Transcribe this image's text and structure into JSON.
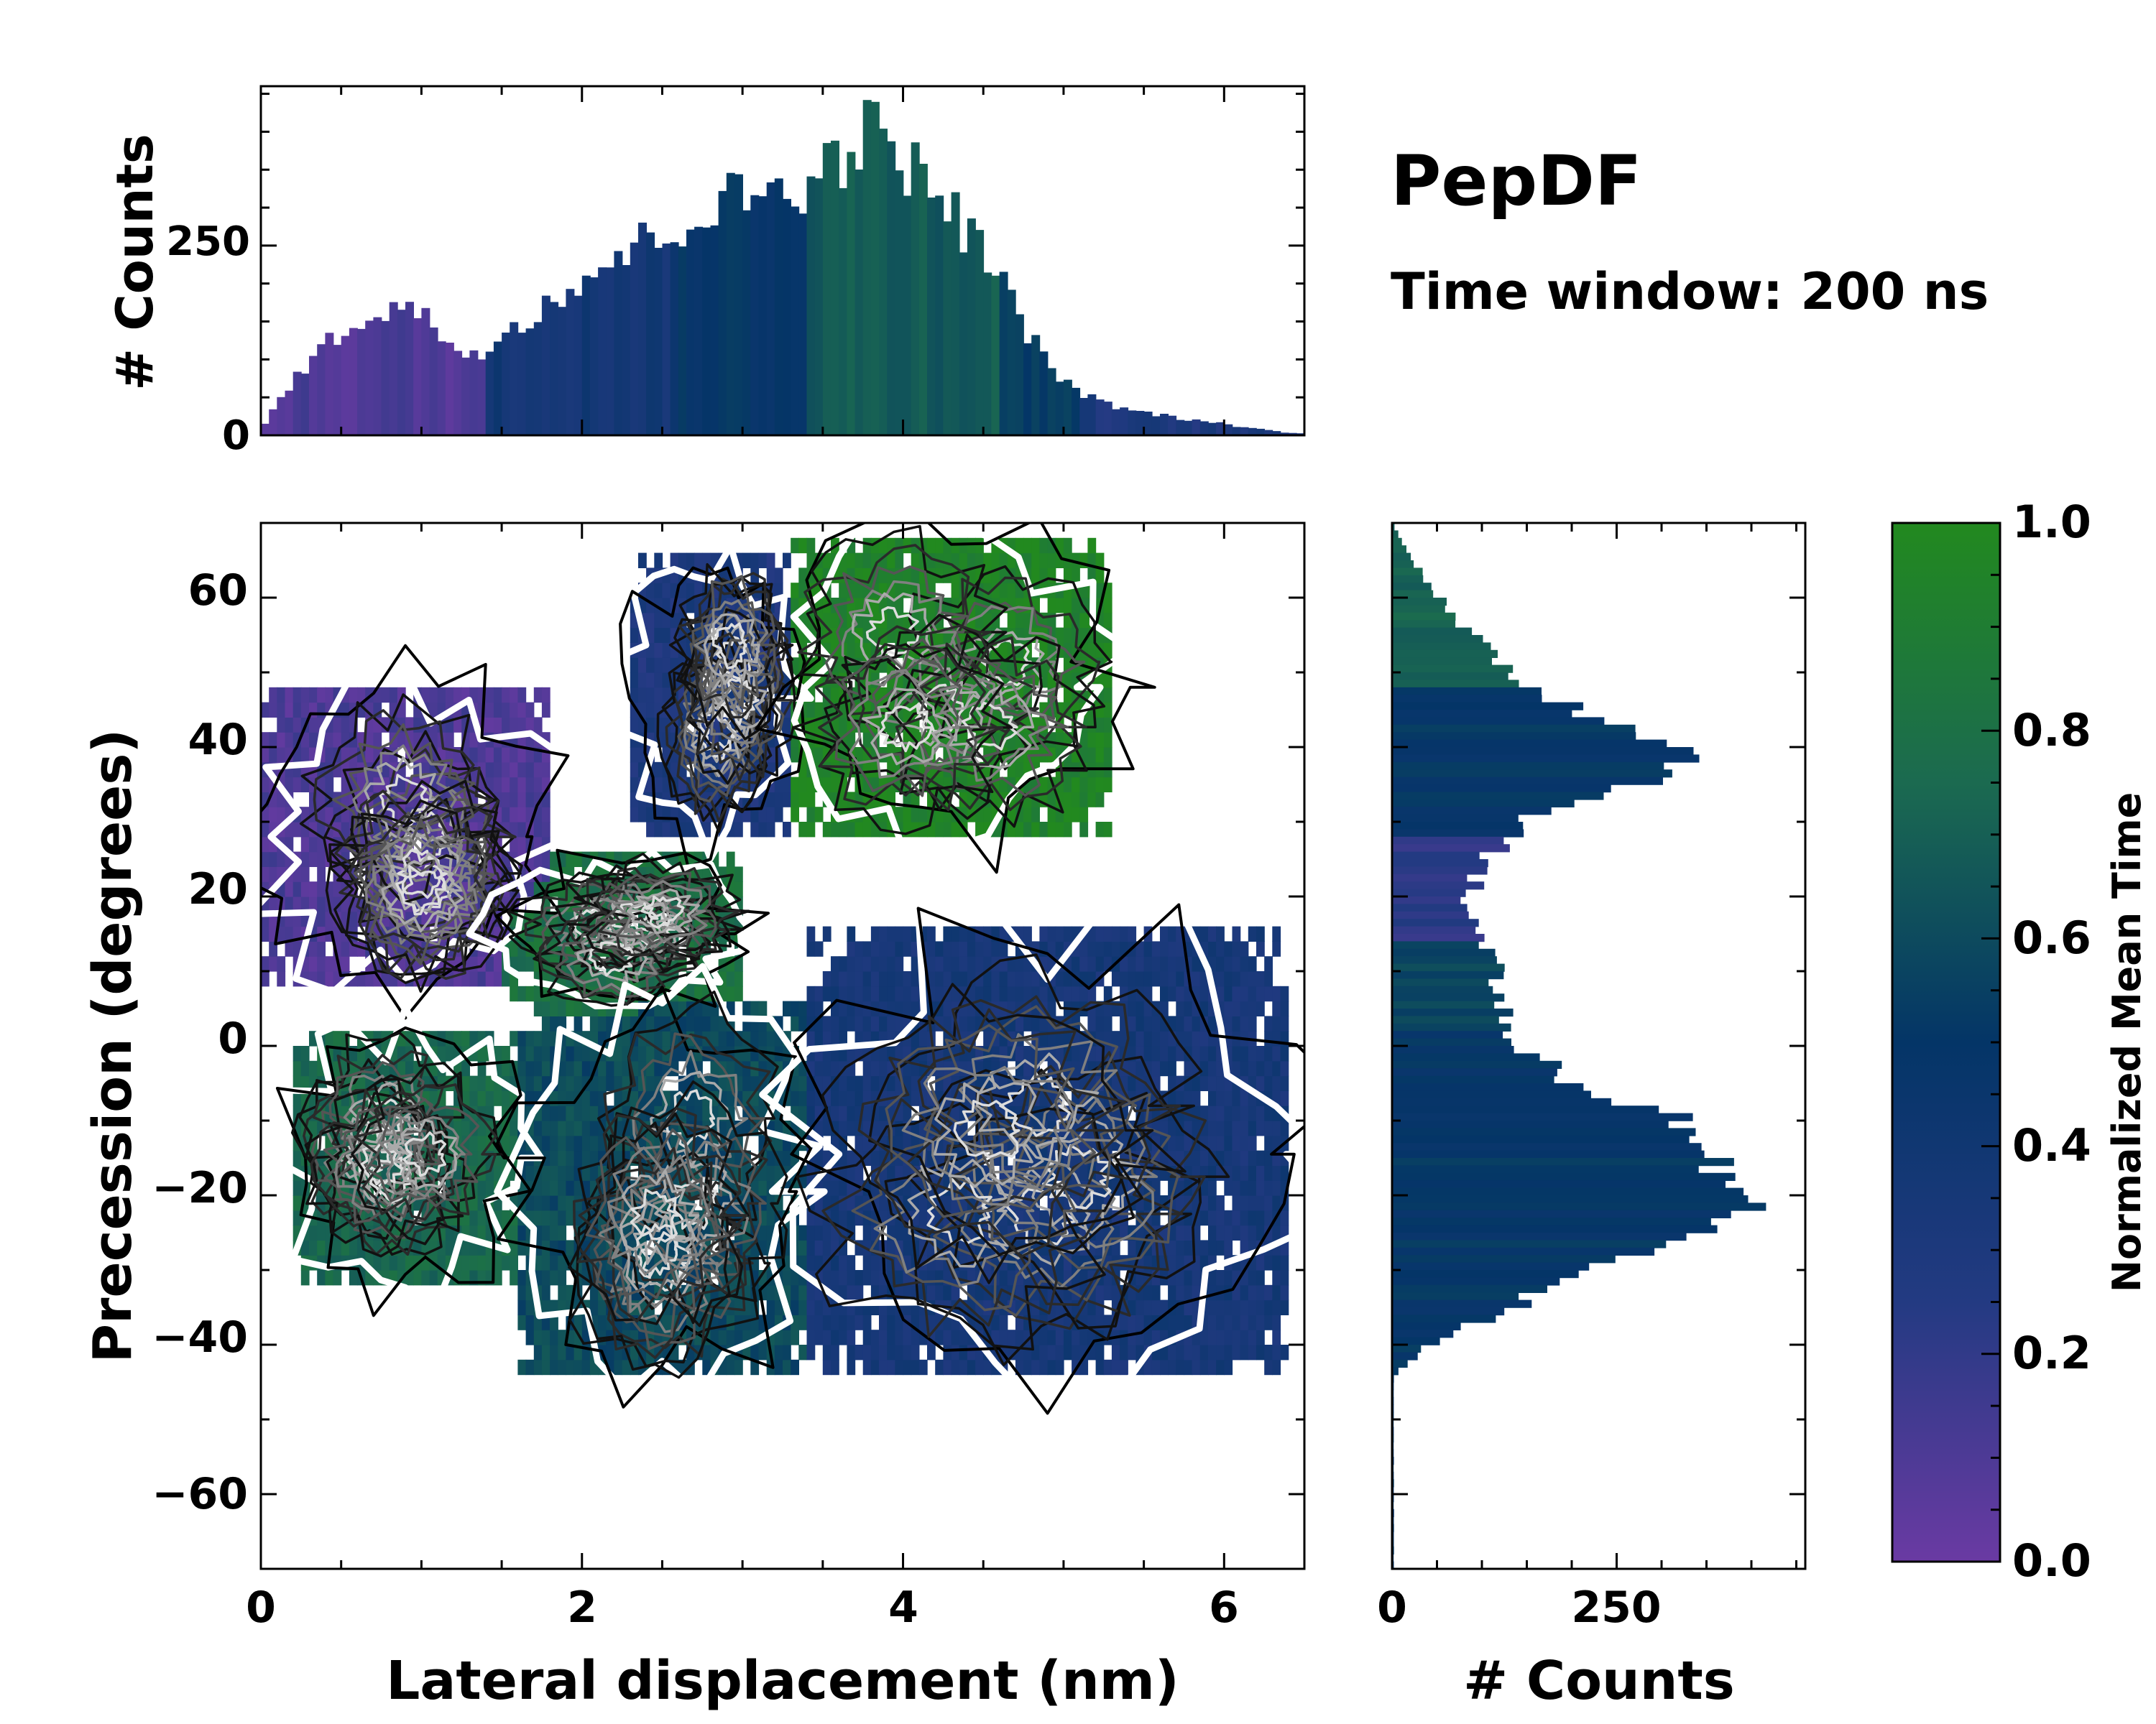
{
  "chart_data": {
    "type": "heatmap",
    "title": "PepDF",
    "subtitle": "Time window: 200 ns",
    "xlabel": "Lateral displacement (nm)",
    "ylabel": "Precession (degrees)",
    "xlim": [
      0,
      6.5
    ],
    "ylim": [
      -70,
      70
    ],
    "xticks": [
      "0",
      "2",
      "4",
      "6"
    ],
    "xtick_values": [
      0,
      2,
      4,
      6
    ],
    "yticks": [
      "60",
      "40",
      "20",
      "0",
      "−20",
      "−40",
      "−60"
    ],
    "ytick_values": [
      60,
      40,
      20,
      0,
      -20,
      -40,
      -60
    ],
    "colorbar": {
      "label": "Normalized Mean Time",
      "ticks": [
        "0.0",
        "0.2",
        "0.4",
        "0.6",
        "0.8",
        "1.0"
      ],
      "tick_values": [
        0.0,
        0.2,
        0.4,
        0.6,
        0.8,
        1.0
      ],
      "colors": [
        "#6a3aa3",
        "#233a82",
        "#043567",
        "#1b6a50",
        "#22891f"
      ]
    },
    "regions": [
      {
        "name": "purple cluster",
        "x": [
          0,
          1.8
        ],
        "y": [
          8,
          48
        ],
        "mean_time": 0.1
      },
      {
        "name": "upper blue cluster",
        "x": [
          2.3,
          3.3
        ],
        "y": [
          28,
          65
        ],
        "mean_time": 0.3
      },
      {
        "name": "upper green cluster",
        "x": [
          3.3,
          5.3
        ],
        "y": [
          28,
          68
        ],
        "mean_time": 0.95
      },
      {
        "name": "middle green cluster",
        "x": [
          1.5,
          3.0
        ],
        "y": [
          5,
          25
        ],
        "mean_time": 0.8
      },
      {
        "name": "lower green cluster",
        "x": [
          0.2,
          1.6
        ],
        "y": [
          -32,
          2
        ],
        "mean_time": 0.75
      },
      {
        "name": "lower teal cluster",
        "x": [
          1.6,
          3.4
        ],
        "y": [
          -44,
          5
        ],
        "mean_time": 0.6
      },
      {
        "name": "lower blue cluster",
        "x": [
          3.4,
          6.4
        ],
        "y": [
          -44,
          15
        ],
        "mean_time": 0.35
      }
    ],
    "top_histogram": {
      "ylabel": "# Counts",
      "yticks": [
        "0",
        "250"
      ],
      "ytick_values": [
        0,
        250
      ],
      "ylim": [
        0,
        460
      ],
      "profile_x": [
        0,
        0.3,
        0.6,
        0.9,
        1.1,
        1.3,
        1.6,
        2.0,
        2.5,
        3.0,
        3.3,
        3.6,
        3.75,
        4.0,
        4.3,
        4.6,
        4.9,
        5.2,
        5.5,
        6.0,
        6.4
      ],
      "profile_counts": [
        10,
        100,
        155,
        175,
        140,
        105,
        150,
        210,
        270,
        320,
        330,
        365,
        410,
        370,
        300,
        210,
        90,
        45,
        30,
        15,
        3
      ]
    },
    "right_histogram": {
      "xlabel": "# Counts",
      "xticks": [
        "0",
        "250"
      ],
      "xtick_values": [
        0,
        250
      ],
      "xlim": [
        0,
        460
      ],
      "profile_y": [
        70,
        64,
        56,
        48,
        44,
        40,
        36,
        30,
        24,
        18,
        12,
        6,
        0,
        -6,
        -12,
        -18,
        -22,
        -28,
        -34,
        -40,
        -44
      ],
      "profile_counts": [
        0,
        30,
        75,
        160,
        230,
        360,
        300,
        150,
        100,
        80,
        120,
        120,
        140,
        230,
        360,
        350,
        390,
        250,
        150,
        40,
        2
      ]
    }
  }
}
